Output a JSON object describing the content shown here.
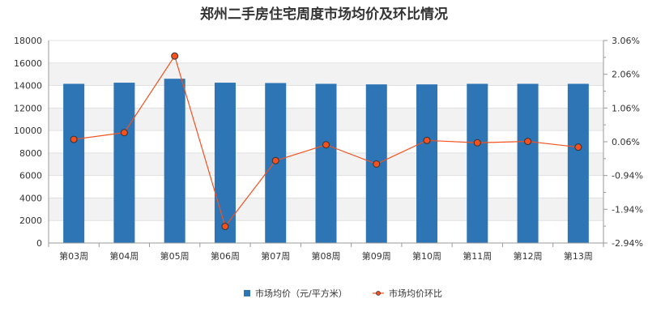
{
  "chart_data": {
    "type": "bar",
    "title": "郑州二手房住宅周度市场均价及环比情况",
    "categories": [
      "第03周",
      "第04周",
      "第05周",
      "第06周",
      "第07周",
      "第08周",
      "第09周",
      "第10周",
      "第11周",
      "第12周",
      "第13周"
    ],
    "series": [
      {
        "name": "市场均价（元/平方米）",
        "type": "bar",
        "axis": "left",
        "color": "#2e75b6",
        "values": [
          14150,
          14250,
          14600,
          14250,
          14220,
          14150,
          14100,
          14100,
          14150,
          14150,
          14150
        ]
      },
      {
        "name": "市场均价环比",
        "type": "line",
        "axis": "right",
        "color": "#f4511e",
        "marker_color": "#f4511e",
        "values": [
          0.13,
          0.33,
          2.6,
          -2.45,
          -0.5,
          -0.03,
          -0.6,
          0.1,
          0.03,
          0.07,
          -0.1
        ]
      }
    ],
    "y_left": {
      "min": 0,
      "max": 18000,
      "ticks": [
        "0",
        "2000",
        "4000",
        "6000",
        "8000",
        "10000",
        "12000",
        "14000",
        "16000",
        "18000"
      ]
    },
    "y_right": {
      "min": -2.94,
      "max": 3.06,
      "ticks": [
        "-2.94%",
        "-1.94%",
        "-0.94%",
        "0.06%",
        "1.06%",
        "2.06%",
        "3.06%"
      ]
    },
    "grid": true,
    "legend_position": "bottom"
  }
}
